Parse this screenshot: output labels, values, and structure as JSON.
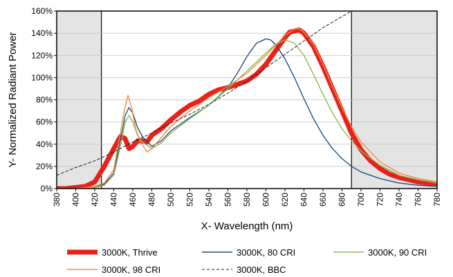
{
  "chart_data": {
    "type": "line",
    "title": "",
    "xlabel": "X- Wavelength (nm)",
    "ylabel": "Y- Normalized Radiant Power",
    "xlim": [
      380,
      780
    ],
    "ylim": [
      0,
      160
    ],
    "x_ticks": [
      380,
      400,
      420,
      440,
      460,
      480,
      500,
      520,
      540,
      560,
      580,
      600,
      620,
      640,
      660,
      680,
      700,
      720,
      740,
      760,
      780
    ],
    "y_ticks": [
      0,
      20,
      40,
      60,
      80,
      100,
      120,
      140,
      160
    ],
    "y_tick_labels": [
      "0%",
      "20%",
      "40%",
      "60%",
      "80%",
      "100%",
      "120%",
      "140%",
      "160%"
    ],
    "grid": "horizontal",
    "legend_position": "bottom",
    "shaded_regions": [
      [
        380,
        427
      ],
      [
        690,
        780
      ]
    ],
    "shade_color": "#e4e4e4",
    "series": [
      {
        "name": "3000K, Thrive",
        "color": "#e8221b",
        "style": "thick",
        "x": [
          380,
          390,
          400,
          410,
          420,
          430,
          440,
          447,
          452,
          456,
          460,
          465,
          470,
          475,
          480,
          490,
          500,
          510,
          520,
          530,
          540,
          550,
          560,
          570,
          580,
          590,
          600,
          610,
          620,
          625,
          630,
          635,
          640,
          650,
          660,
          670,
          680,
          690,
          700,
          710,
          720,
          730,
          740,
          750,
          760,
          770,
          780
        ],
        "y": [
          0,
          0,
          1,
          2,
          6,
          20,
          36,
          47,
          45,
          36,
          38,
          43,
          43,
          42,
          48,
          54,
          62,
          69,
          75,
          79,
          85,
          89,
          91,
          94,
          97,
          103,
          112,
          124,
          136,
          141,
          142,
          143,
          140,
          128,
          110,
          90,
          70,
          50,
          35,
          25,
          18,
          13,
          10,
          8,
          6,
          5,
          4
        ]
      },
      {
        "name": "3000K, 80 CRI",
        "color": "#1f4e79",
        "style": "thin",
        "x": [
          380,
          400,
          420,
          430,
          440,
          448,
          452,
          456,
          460,
          465,
          470,
          480,
          490,
          500,
          520,
          540,
          560,
          570,
          580,
          590,
          600,
          605,
          610,
          620,
          630,
          640,
          650,
          660,
          670,
          680,
          690,
          700,
          720,
          740,
          760,
          780
        ],
        "y": [
          0,
          0,
          1,
          4,
          14,
          48,
          66,
          73,
          68,
          55,
          47,
          38,
          43,
          52,
          64,
          75,
          91,
          104,
          119,
          131,
          135,
          134,
          130,
          117,
          100,
          81,
          63,
          48,
          36,
          27,
          20,
          15,
          9,
          5,
          3,
          2
        ]
      },
      {
        "name": "3000K, 90 CRI",
        "color": "#8cba52",
        "style": "thin",
        "x": [
          380,
          400,
          420,
          430,
          440,
          448,
          452,
          456,
          460,
          465,
          470,
          480,
          490,
          500,
          520,
          540,
          560,
          580,
          600,
          610,
          620,
          630,
          640,
          650,
          660,
          670,
          680,
          690,
          700,
          720,
          740,
          760,
          780
        ],
        "y": [
          0,
          0,
          1,
          3,
          12,
          42,
          60,
          66,
          60,
          48,
          42,
          36,
          41,
          50,
          63,
          75,
          90,
          106,
          122,
          130,
          134,
          131,
          120,
          103,
          85,
          68,
          54,
          43,
          34,
          21,
          12,
          8,
          5
        ]
      },
      {
        "name": "3000K, 98 CRI",
        "color": "#ed8a45",
        "style": "thin",
        "x": [
          380,
          400,
          420,
          430,
          440,
          447,
          451,
          455,
          459,
          463,
          468,
          475,
          480,
          490,
          500,
          520,
          540,
          560,
          580,
          600,
          620,
          630,
          635,
          640,
          650,
          660,
          670,
          680,
          690,
          700,
          720,
          740,
          760,
          780
        ],
        "y": [
          0,
          0,
          2,
          5,
          17,
          50,
          70,
          84,
          72,
          54,
          42,
          33,
          36,
          46,
          56,
          70,
          82,
          92,
          104,
          120,
          138,
          144,
          144,
          141,
          130,
          112,
          92,
          73,
          56,
          42,
          24,
          14,
          9,
          6
        ]
      },
      {
        "name": "3000K, BBC",
        "color": "#222222",
        "style": "dashed",
        "x": [
          380,
          400,
          420,
          440,
          460,
          480,
          500,
          520,
          540,
          560,
          580,
          600,
          620,
          640,
          660,
          680,
          690,
          700
        ],
        "y": [
          12,
          19,
          25,
          33,
          42,
          50,
          59,
          67,
          76,
          86,
          97,
          109,
          121,
          133,
          145,
          155,
          160,
          165
        ]
      }
    ]
  }
}
